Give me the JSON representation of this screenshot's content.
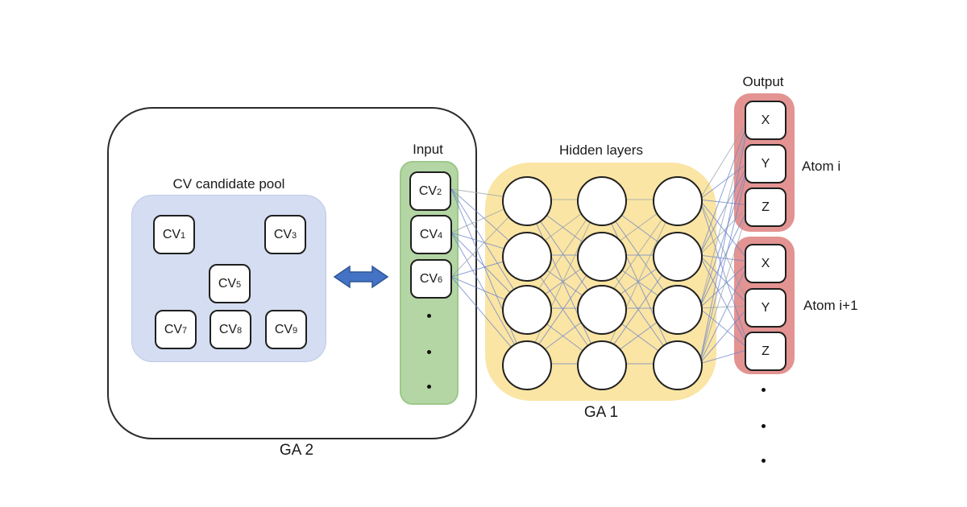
{
  "diagram": {
    "ga2_label": "GA 2",
    "ga1_label": "GA 1",
    "pool_title": "CV candidate pool",
    "input_title": "Input",
    "hidden_title": "Hidden layers",
    "output_title": "Output"
  },
  "pool": {
    "nodes": [
      {
        "base": "CV",
        "sub": "1"
      },
      {
        "base": "CV",
        "sub": "3"
      },
      {
        "base": "CV",
        "sub": "5"
      },
      {
        "base": "CV",
        "sub": "7"
      },
      {
        "base": "CV",
        "sub": "8"
      },
      {
        "base": "CV",
        "sub": "9"
      }
    ]
  },
  "input": {
    "nodes": [
      {
        "base": "CV",
        "sub": "2"
      },
      {
        "base": "CV",
        "sub": "4"
      },
      {
        "base": "CV",
        "sub": "6"
      }
    ]
  },
  "output": {
    "groups": [
      {
        "atom": "Atom i",
        "nodes": [
          "X",
          "Y",
          "Z"
        ]
      },
      {
        "atom": "Atom i+1",
        "nodes": [
          "X",
          "Y",
          "Z"
        ]
      }
    ]
  },
  "network": {
    "hidden_columns": 3,
    "hidden_rows": 4
  },
  "colors": {
    "pool_fill": "#d4ddf1",
    "input_fill": "#b4d6a4",
    "input_border": "#9cc88a",
    "hidden_fill": "#fbe5a4",
    "output_fill": "#e39392",
    "arrow_fill": "#4472c4",
    "arrow_border": "#2f5597",
    "line_blue": "#6b83c9",
    "line_gray": "#93a0a8"
  }
}
